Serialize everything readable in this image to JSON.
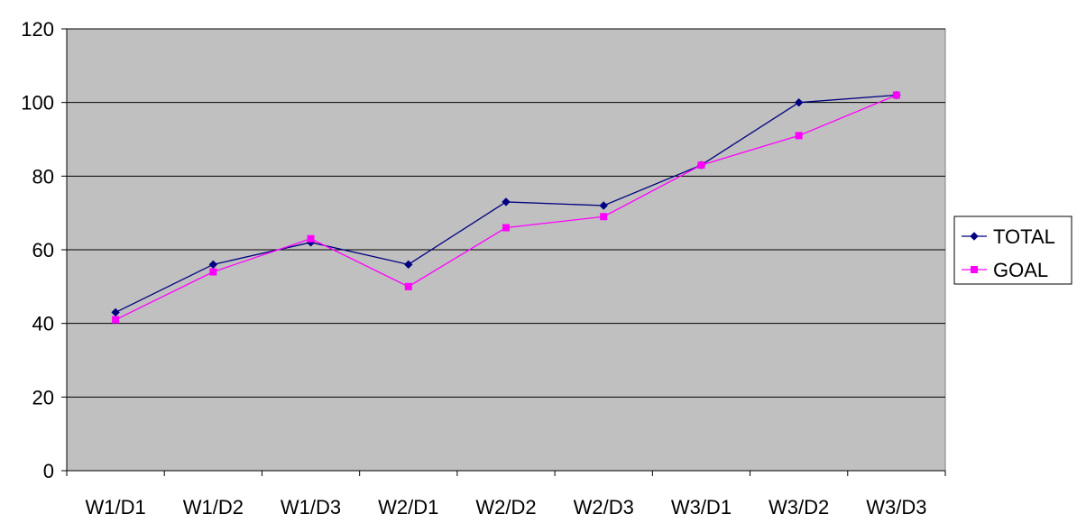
{
  "chart_data": {
    "type": "line",
    "title": "",
    "xlabel": "",
    "ylabel": "",
    "categories": [
      "W1/D1",
      "W1/D2",
      "W1/D3",
      "W2/D1",
      "W2/D2",
      "W2/D3",
      "W3/D1",
      "W3/D2",
      "W3/D3"
    ],
    "series": [
      {
        "name": "TOTAL",
        "values": [
          43,
          56,
          62,
          56,
          73,
          72,
          83,
          100,
          102
        ],
        "color": "#000080",
        "marker": "diamond"
      },
      {
        "name": "GOAL",
        "values": [
          41,
          54,
          63,
          50,
          66,
          69,
          83,
          91,
          102
        ],
        "color": "#FF00FF",
        "marker": "square"
      }
    ],
    "ylim": [
      0,
      120
    ],
    "yticks": [
      0,
      20,
      40,
      60,
      80,
      100,
      120
    ],
    "grid": true,
    "legend_position": "right",
    "plot_background": "#C0C0C0"
  }
}
